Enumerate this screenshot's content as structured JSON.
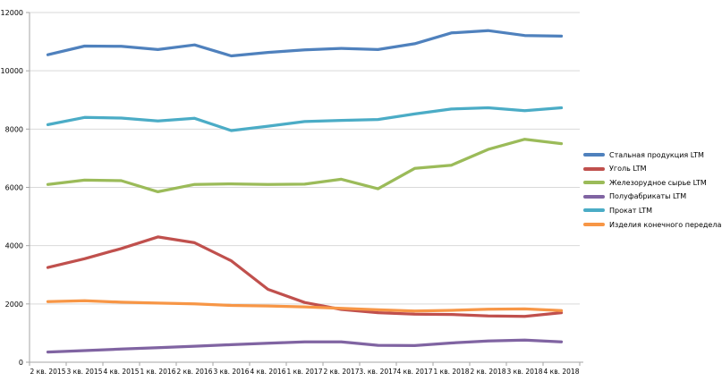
{
  "chart_data": {
    "type": "line",
    "title": "",
    "xlabel": "",
    "ylabel": "",
    "categories": [
      "2 кв. 2015",
      "3 кв. 2015",
      "4 кв. 2015",
      "1 кв. 2016",
      "2 кв. 2016",
      "3 кв. 2016",
      "4 кв. 2016",
      "1 кв. 2017",
      "2 кв. 2017",
      "3. кв. 2017",
      "4 кв. 2017",
      "1 кв. 2018",
      "2 кв. 2018",
      "3 кв. 2018",
      "4 кв. 2018"
    ],
    "y_ticks": [
      0,
      2000,
      4000,
      6000,
      8000,
      10000,
      12000
    ],
    "ylim": [
      0,
      12000
    ],
    "grid": "horizontal",
    "legend_position": "right",
    "series": [
      {
        "name": "Стальная продукция LTM",
        "key": "steel-products-ltm",
        "color": "#4F81BD",
        "values": [
          10550,
          10850,
          10840,
          10730,
          10890,
          10510,
          10630,
          10720,
          10770,
          10730,
          10930,
          11300,
          11380,
          11210,
          11190
        ]
      },
      {
        "name": "Уголь LTM",
        "key": "coal-ltm",
        "color": "#C0504D",
        "values": [
          3250,
          3550,
          3900,
          4300,
          4100,
          3480,
          2500,
          2050,
          1810,
          1700,
          1650,
          1640,
          1590,
          1570,
          1700
        ]
      },
      {
        "name": "Железорудное сырье LTM",
        "key": "iron-ore-ltm",
        "color": "#9BBB59",
        "values": [
          6100,
          6250,
          6230,
          5850,
          6100,
          6120,
          6100,
          6110,
          6280,
          5950,
          6650,
          6760,
          7300,
          7650,
          7500
        ]
      },
      {
        "name": "Полуфабрикаты LTM",
        "key": "semi-finished-ltm",
        "color": "#8064A2",
        "values": [
          350,
          400,
          450,
          500,
          550,
          600,
          650,
          700,
          700,
          580,
          570,
          660,
          730,
          760,
          700
        ]
      },
      {
        "name": "Прокат LTM",
        "key": "rolled-products-ltm",
        "color": "#4BACC6",
        "values": [
          8150,
          8400,
          8380,
          8280,
          8370,
          7950,
          8100,
          8260,
          8300,
          8330,
          8520,
          8690,
          8730,
          8630,
          8730
        ]
      },
      {
        "name": "Изделия конечного передела LTM",
        "key": "end-products-ltm",
        "color": "#F79646",
        "values": [
          2080,
          2110,
          2060,
          2030,
          2000,
          1950,
          1930,
          1900,
          1850,
          1800,
          1760,
          1780,
          1820,
          1830,
          1770
        ]
      }
    ],
    "colors": {
      "background": "#FFFFFF",
      "gridline": "#D9D9D9",
      "axis": "#A6A6A6",
      "text": "#000000"
    }
  }
}
